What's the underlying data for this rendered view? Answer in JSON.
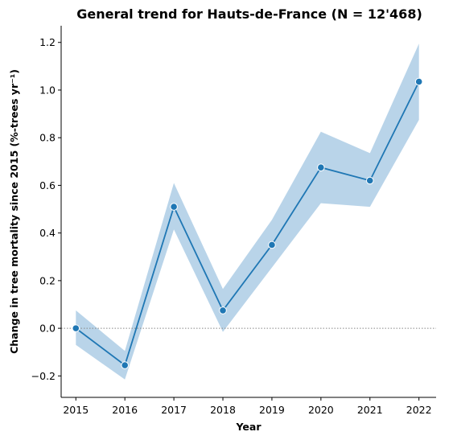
{
  "chart_data": {
    "type": "line",
    "title": "General trend for Hauts-de-France  (N = 12'468)",
    "xlabel": "Year",
    "ylabel": "Change in tree mortality since 2015 (%-trees yr⁻¹)",
    "x": [
      2015,
      2016,
      2017,
      2018,
      2019,
      2020,
      2021,
      2022
    ],
    "x_tick_labels": [
      "2015",
      "2016",
      "2017",
      "2018",
      "2019",
      "2020",
      "2021",
      "2022"
    ],
    "y_ticks": [
      -0.2,
      0.0,
      0.2,
      0.4,
      0.6,
      0.8,
      1.0,
      1.2
    ],
    "y_tick_labels": [
      "−0.2",
      "0.0",
      "0.2",
      "0.4",
      "0.6",
      "0.8",
      "1.0",
      "1.2"
    ],
    "ylim": [
      -0.29,
      1.27
    ],
    "xlim": [
      2014.7,
      2022.35
    ],
    "series": [
      {
        "values": [
          0.0,
          -0.155,
          0.51,
          0.075,
          0.35,
          0.675,
          0.62,
          1.035
        ],
        "ci_lower": [
          -0.07,
          -0.215,
          0.415,
          -0.015,
          0.255,
          0.525,
          0.51,
          0.875
        ],
        "ci_upper": [
          0.075,
          -0.095,
          0.61,
          0.165,
          0.455,
          0.825,
          0.735,
          1.195
        ],
        "color": "#1f77b4",
        "band_color": "#b9d4e9"
      }
    ],
    "reference_line": {
      "y": 0.0,
      "style": "dotted",
      "color": "#888888"
    },
    "grid": false,
    "spines": [
      "left",
      "bottom"
    ]
  }
}
